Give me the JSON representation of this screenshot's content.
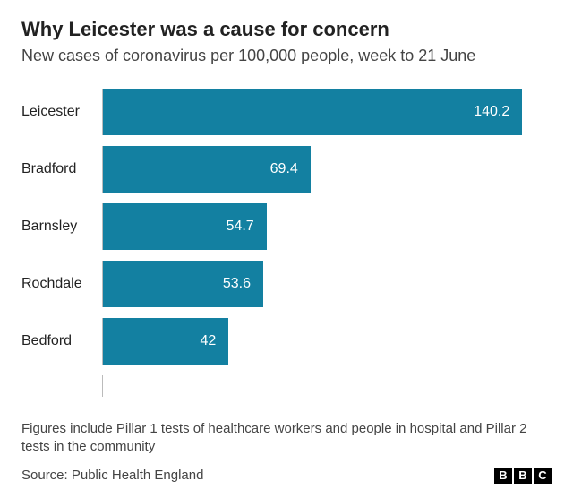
{
  "title": "Why Leicester was a cause for concern",
  "subtitle": "New cases of coronavirus per 100,000 people, week to 21 June",
  "chart": {
    "type": "bar-horizontal",
    "bar_color": "#1380a1",
    "value_label_color": "#ffffff",
    "value_label_fontsize": 16,
    "category_label_color": "#222222",
    "category_label_fontsize": 16,
    "axis_line_color": "#bbbbbb",
    "background_color": "#ffffff",
    "xlim": [
      0,
      150
    ],
    "bars": [
      {
        "category": "Leicester",
        "value": 140.2,
        "label": "140.2"
      },
      {
        "category": "Bradford",
        "value": 69.4,
        "label": "69.4"
      },
      {
        "category": "Barnsley",
        "value": 54.7,
        "label": "54.7"
      },
      {
        "category": "Rochdale",
        "value": 53.6,
        "label": "53.6"
      },
      {
        "category": "Bedford",
        "value": 42,
        "label": "42"
      }
    ]
  },
  "footnote": "Figures include Pillar 1 tests of healthcare workers and people in hospital and Pillar 2 tests in the community",
  "source": "Source: Public Health England",
  "title_fontsize": 22,
  "subtitle_fontsize": 18,
  "footnote_fontsize": 15,
  "source_fontsize": 15,
  "logo_letters": [
    "B",
    "B",
    "C"
  ]
}
